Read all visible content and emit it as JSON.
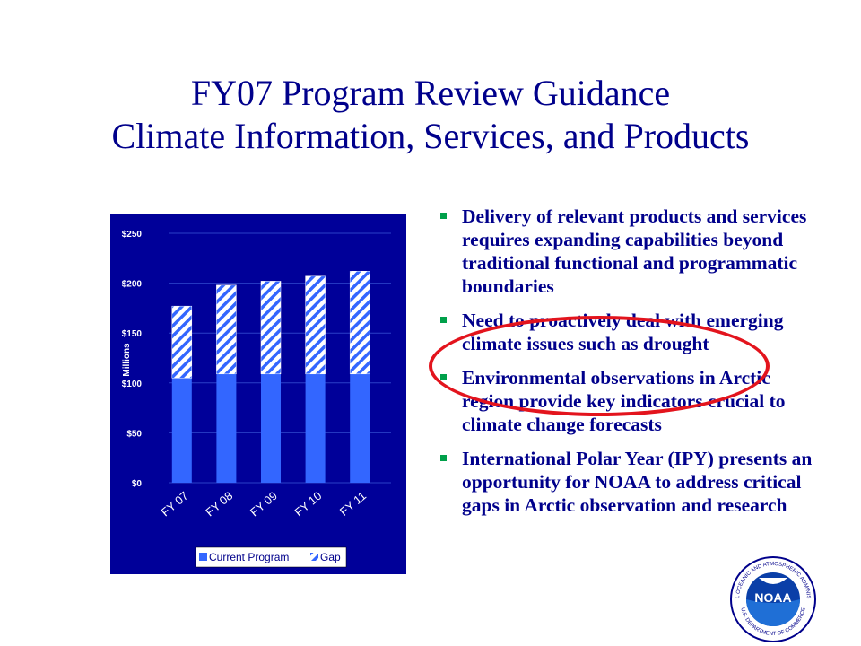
{
  "title": {
    "line1": "FY07 Program Review Guidance",
    "line2": "Climate Information, Services, and Products"
  },
  "bullets": [
    "Delivery of relevant products and services requires expanding capabilities beyond traditional functional and programmatic boundaries",
    "Need to proactively deal with emerging climate issues such as drought",
    "Environmental observations in Arctic region provide key indicators crucial to climate change forecasts",
    "International Polar Year (IPY) presents an opportunity for NOAA to address critical gaps in Arctic observation and research"
  ],
  "colors": {
    "title": "#00008b",
    "panel": "#000099",
    "current_program": "#3366ff",
    "gap_stripe": "#3366ff",
    "gap_bg": "#ffffff",
    "bullet_marker": "#00a04a",
    "highlight": "#e3141d"
  },
  "chart_data": {
    "type": "bar",
    "stacked": true,
    "categories": [
      "FY 07",
      "FY 08",
      "FY 09",
      "FY 10",
      "FY 11"
    ],
    "series": [
      {
        "name": "Current Program",
        "values": [
          105,
          109,
          109,
          109,
          109
        ]
      },
      {
        "name": "Gap",
        "values": [
          72,
          89,
          93,
          98,
          103
        ]
      }
    ],
    "ylabel": "Millions",
    "ylim": [
      0,
      250
    ],
    "yticks": [
      0,
      50,
      100,
      150,
      200,
      250
    ],
    "ytick_labels": [
      "$0",
      "$50",
      "$100",
      "$150",
      "$200",
      "$250"
    ],
    "legend_position": "bottom",
    "grid": true
  },
  "logo": {
    "text": "NOAA",
    "ring_text": "NATIONAL OCEANIC AND ATMOSPHERIC ADMINISTRATION",
    "ring_bottom": "U.S. DEPARTMENT OF COMMERCE"
  }
}
